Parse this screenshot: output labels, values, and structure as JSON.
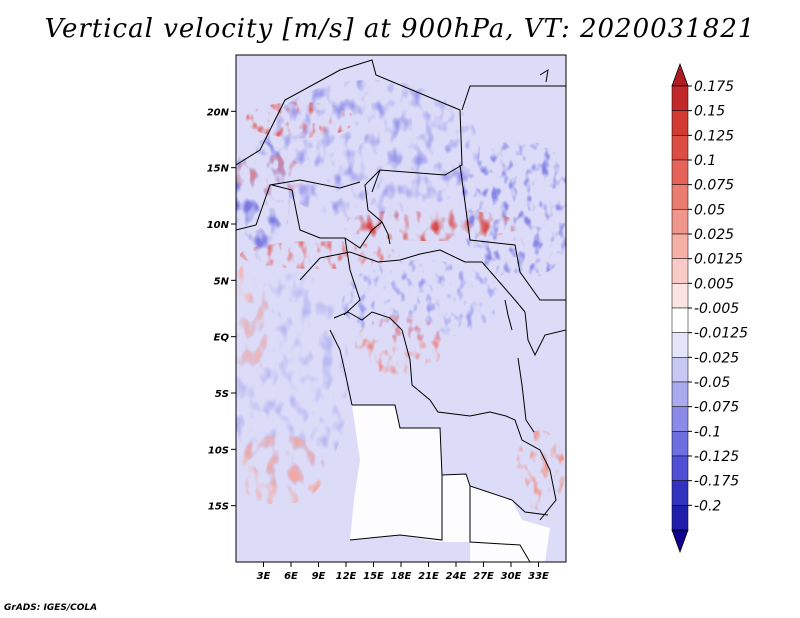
{
  "title": "Vertical velocity [m/s] at 900hPa, VT: 2020031821",
  "credit": "GrADS: IGES/COLA",
  "chart_data": {
    "type": "heatmap",
    "title": "Vertical velocity [m/s] at 900hPa, VT: 2020031821",
    "variable": "Vertical velocity",
    "units": "m/s",
    "level": "900hPa",
    "valid_time": "2020031821",
    "lon_range": [
      0,
      36
    ],
    "lat_range": [
      -20,
      25
    ],
    "x_ticks": [
      "3E",
      "6E",
      "9E",
      "12E",
      "15E",
      "18E",
      "21E",
      "24E",
      "27E",
      "30E",
      "33E"
    ],
    "x_tick_values": [
      3,
      6,
      9,
      12,
      15,
      18,
      21,
      24,
      27,
      30,
      33
    ],
    "y_ticks": [
      "20N",
      "15N",
      "10N",
      "5N",
      "EQ",
      "5S",
      "10S",
      "15S"
    ],
    "y_tick_values": [
      20,
      15,
      10,
      5,
      0,
      -5,
      -10,
      -15
    ],
    "colorbar": {
      "labels": [
        "0.175",
        "0.15",
        "0.125",
        "0.1",
        "0.075",
        "0.05",
        "0.025",
        "0.0125",
        "0.005",
        "-0.005",
        "-0.0125",
        "-0.025",
        "-0.05",
        "-0.075",
        "-0.1",
        "-0.125",
        "-0.175",
        "-0.2"
      ],
      "colors": [
        "#c0282a",
        "#d23a32",
        "#dc4e44",
        "#e4645a",
        "#ea7c72",
        "#f0968c",
        "#f5b0a8",
        "#f9cbc6",
        "#fce4e2",
        "#ffffff",
        "#e4e4fb",
        "#c8c8f5",
        "#aaaaef",
        "#8c8ce8",
        "#6e6ee0",
        "#5050d4",
        "#3232c0",
        "#1e1eaa",
        "#1010a0"
      ],
      "top_arrow_color": "#b01c24",
      "bottom_arrow_color": "#100090"
    }
  }
}
